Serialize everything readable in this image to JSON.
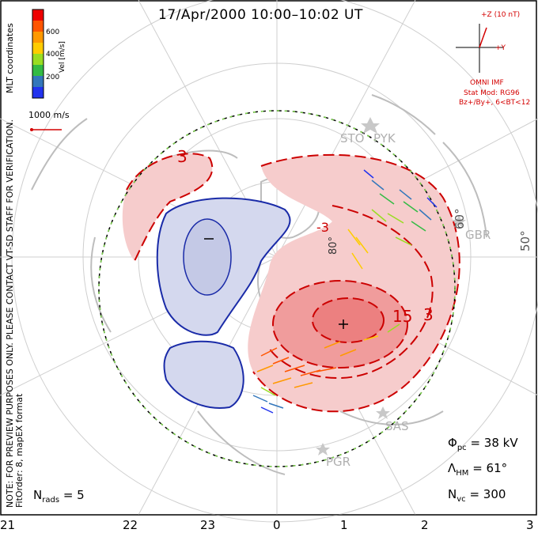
{
  "title": "17/Apr/2000  10:00–10:02  UT",
  "colorbar": {
    "ticks": [
      "600",
      "400",
      "200"
    ],
    "label": "Vel [m/s]",
    "colors": [
      "#ee0000",
      "#ff5500",
      "#ff9900",
      "#ffcc00",
      "#99dd22",
      "#33bb44",
      "#3377bb",
      "#2233ee"
    ]
  },
  "coord_label": "MLT coordinates",
  "notes": {
    "note": "NOTE: FOR PREVIEW PURPOSES ONLY. PLEASE CONTACT VT-SD STAFF FOR VERIFICATION.",
    "fit": "FitOrder: 8, mapEX format"
  },
  "ref_vector": "1000 m/s",
  "imf": {
    "bz_label": "+Z (10 nT)",
    "by_label": "+Y",
    "source": "OMNI IMF",
    "model": "Stat Mod: RG96",
    "condition": "Bz+/By+, 6<BT<12"
  },
  "stations": [
    "STO",
    "PYK",
    "GBR",
    "SAS",
    "PGR"
  ],
  "contour_labels": [
    "3",
    "3",
    "-3",
    "15",
    "-3"
  ],
  "polarity": {
    "min": "−",
    "max": "+"
  },
  "latitudes": [
    "60°",
    "50°",
    "80°"
  ],
  "stats": {
    "phi": "Φ",
    "phi_sub": "pc",
    "phi_val": "= 38 kV",
    "lam": "Λ",
    "lam_sub": "HM",
    "lam_val": "= 61°",
    "nvc": "N",
    "nvc_sub": "vc",
    "nvc_val": "= 300",
    "nrads": "N",
    "nrads_sub": "rads",
    "nrads_val": "= 5"
  },
  "mlt_ticks": [
    "21",
    "22",
    "23",
    "0",
    "1",
    "2",
    "3"
  ],
  "colors": {
    "positive": "#f0a0a0",
    "negative": "#c8cde8",
    "contour_pos": "#cc0000",
    "contour_neg": "#1a2ba8",
    "hmb": "#7bd44a"
  }
}
